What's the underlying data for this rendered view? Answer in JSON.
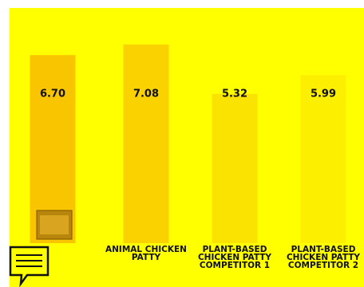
{
  "chart_data": {
    "type": "bar",
    "categories": [
      null,
      "ANIMAL CHICKEN PATTY",
      "PLANT-BASED CHICKEN PATTY COMPETITOR 1",
      "PLANT-BASED CHICKEN PATTY COMPETITOR 2"
    ],
    "values": [
      6.7,
      7.08,
      5.32,
      5.99
    ],
    "value_labels": [
      "6.70",
      "7.08",
      "5.32",
      "5.99"
    ],
    "colors": [
      "#f9c400",
      "#f9d200",
      "#fbe300",
      "#fcef00"
    ]
  }
}
